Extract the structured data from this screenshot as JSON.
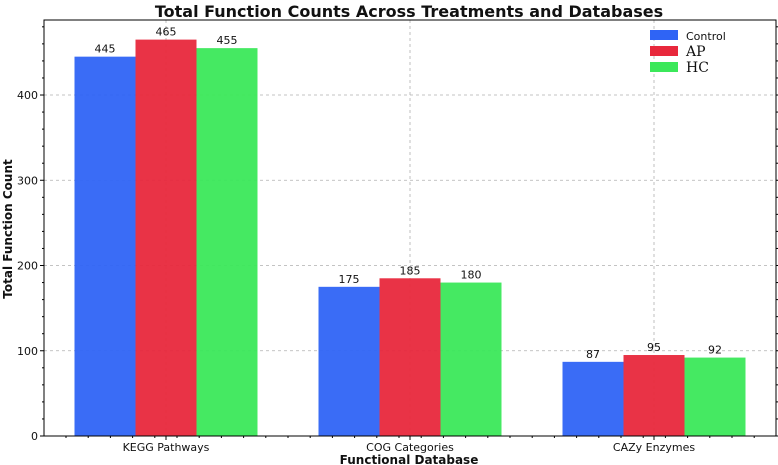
{
  "chart_data": {
    "type": "bar",
    "title": "Total Function Counts Across Treatments and Databases",
    "xlabel": "Functional Database",
    "ylabel": "Total Function Count",
    "categories": [
      "KEGG Pathways",
      "COG Categories",
      "CAZy Enzymes"
    ],
    "series": [
      {
        "name": "Control",
        "values": [
          445,
          175,
          87
        ],
        "color": "#2f64f5"
      },
      {
        "name": "AP",
        "values": [
          465,
          185,
          95
        ],
        "color": "#e8283c"
      },
      {
        "name": "HC",
        "values": [
          455,
          180,
          92
        ],
        "color": "#3be85a"
      }
    ],
    "ylim": [
      0,
      488
    ],
    "yticks": [
      0,
      100,
      200,
      300,
      400
    ],
    "grid": true,
    "legend_position": "top-right"
  }
}
